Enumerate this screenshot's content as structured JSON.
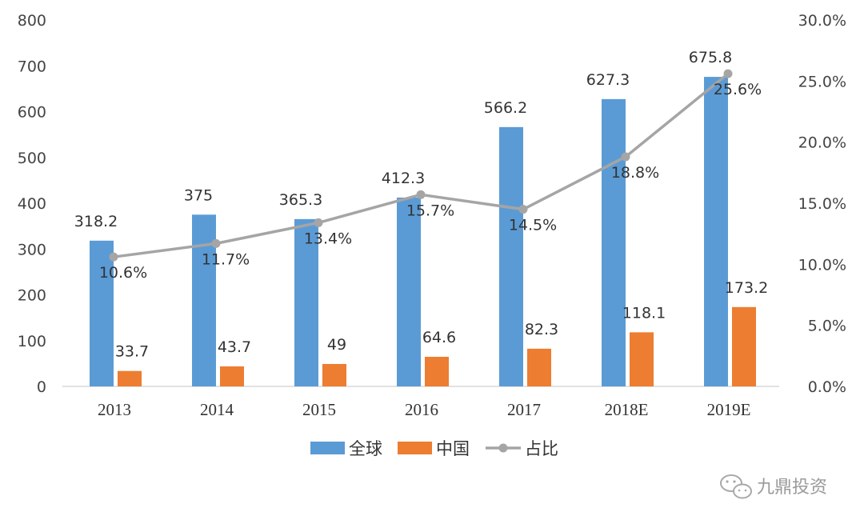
{
  "chart_data": {
    "type": "bar",
    "categories": [
      "2013",
      "2014",
      "2015",
      "2016",
      "2017",
      "2018E",
      "2019E"
    ],
    "series": [
      {
        "name": "全球",
        "type": "bar",
        "axis": "left",
        "color": "#5B9BD5",
        "values": [
          318.2,
          375,
          365.3,
          412.3,
          566.2,
          627.3,
          675.8
        ],
        "labels": [
          "318.2",
          "375",
          "365.3",
          "412.3",
          "566.2",
          "627.3",
          "675.8"
        ]
      },
      {
        "name": "中国",
        "type": "bar",
        "axis": "left",
        "color": "#ED7D31",
        "values": [
          33.7,
          43.7,
          49,
          64.6,
          82.3,
          118.1,
          173.2
        ],
        "labels": [
          "33.7",
          "43.7",
          "49",
          "64.6",
          "82.3",
          "118.1",
          "173.2"
        ]
      },
      {
        "name": "占比",
        "type": "line",
        "axis": "right",
        "color": "#A5A5A5",
        "values": [
          10.6,
          11.7,
          13.4,
          15.7,
          14.5,
          18.8,
          25.6
        ],
        "labels": [
          "10.6%",
          "11.7%",
          "13.4%",
          "15.7%",
          "14.5%",
          "18.8%",
          "25.6%"
        ]
      }
    ],
    "y_left": {
      "ylim": [
        0,
        800
      ],
      "ticks": [
        "0",
        "100",
        "200",
        "300",
        "400",
        "500",
        "600",
        "700",
        "800"
      ]
    },
    "y_right": {
      "ylim": [
        0,
        30
      ],
      "ticks": [
        "0.0%",
        "5.0%",
        "10.0%",
        "15.0%",
        "20.0%",
        "25.0%",
        "30.0%"
      ]
    },
    "grid": false,
    "legend_position": "bottom"
  },
  "watermark": {
    "text": "九鼎投资",
    "icon": "wechat-icon"
  }
}
